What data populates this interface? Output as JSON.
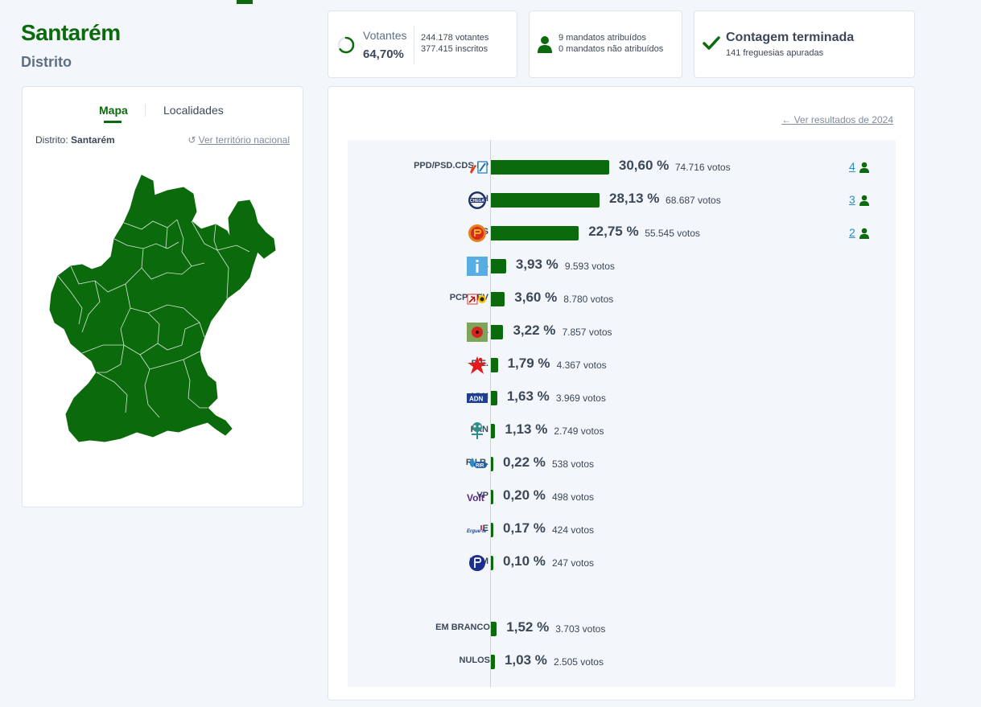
{
  "district": {
    "title": "Santarém",
    "subtitle": "Distrito"
  },
  "stats": {
    "votantes_label": "Votantes",
    "votantes_pct": "64,70%",
    "votantes_count": "244.178 votantes",
    "inscritos_count": "377.415 inscritos",
    "mandatos_atribuidos": "9 mandatos atribuídos",
    "mandatos_nao_atribuidos": "0 mandatos não atribuídos",
    "contagem_title": "Contagem terminada",
    "freguesias": "141 freguesias apuradas",
    "turnout_fraction": 0.647
  },
  "map_panel": {
    "tab_mapa": "Mapa",
    "tab_localidades": "Localidades",
    "district_prefix": "Distrito:",
    "district_name": "Santarém",
    "national_link": "Ver território nacional"
  },
  "results": {
    "link_2024": "Ver resultados de 2024",
    "parties": [
      {
        "name": "PPD/PSD.CDS-PP",
        "pct": "30,60 %",
        "value": 30.6,
        "votes": "74.716 votos",
        "seats": "4",
        "logo": "psd-cds-logo"
      },
      {
        "name": "CH",
        "pct": "28,13 %",
        "value": 28.13,
        "votes": "68.687 votos",
        "seats": "3",
        "logo": "chega-logo"
      },
      {
        "name": "PS",
        "pct": "22,75 %",
        "value": 22.75,
        "votes": "55.545 votos",
        "seats": "2",
        "logo": "ps-logo"
      },
      {
        "name": "IL",
        "pct": "3,93 %",
        "value": 3.93,
        "votes": "9.593 votos",
        "seats": "",
        "logo": "il-logo"
      },
      {
        "name": "PCP-PEV",
        "pct": "3,60 %",
        "value": 3.6,
        "votes": "8.780 votos",
        "seats": "",
        "logo": "pcp-pev-logo"
      },
      {
        "name": "L",
        "pct": "3,22 %",
        "value": 3.22,
        "votes": "7.857 votos",
        "seats": "",
        "logo": "livre-logo"
      },
      {
        "name": "B.E.",
        "pct": "1,79 %",
        "value": 1.79,
        "votes": "4.367 votos",
        "seats": "",
        "logo": "be-logo"
      },
      {
        "name": "ADN",
        "pct": "1,63 %",
        "value": 1.63,
        "votes": "3.969 votos",
        "seats": "",
        "logo": "adn-logo"
      },
      {
        "name": "PAN",
        "pct": "1,13 %",
        "value": 1.13,
        "votes": "2.749 votos",
        "seats": "",
        "logo": "pan-logo"
      },
      {
        "name": "R.I.R.",
        "pct": "0,22 %",
        "value": 0.22,
        "votes": "538 votos",
        "seats": "",
        "logo": "rir-logo"
      },
      {
        "name": "VP",
        "pct": "0,20 %",
        "value": 0.2,
        "votes": "498 votos",
        "seats": "",
        "logo": "volt-logo"
      },
      {
        "name": "E",
        "pct": "0,17 %",
        "value": 0.17,
        "votes": "424 votos",
        "seats": "",
        "logo": "ergue-te-logo"
      },
      {
        "name": "PPM",
        "pct": "0,10 %",
        "value": 0.1,
        "votes": "247 votos",
        "seats": "",
        "logo": "ppm-logo"
      }
    ],
    "other": [
      {
        "name": "EM BRANCO",
        "pct": "1,52 %",
        "value": 1.52,
        "votes": "3.703 votos"
      },
      {
        "name": "NULOS",
        "pct": "1,03 %",
        "value": 1.03,
        "votes": "2.505 votos"
      }
    ]
  },
  "colors": {
    "accent": "#0b6a0b",
    "link": "#2a8cc7",
    "text": "#3c4858"
  }
}
